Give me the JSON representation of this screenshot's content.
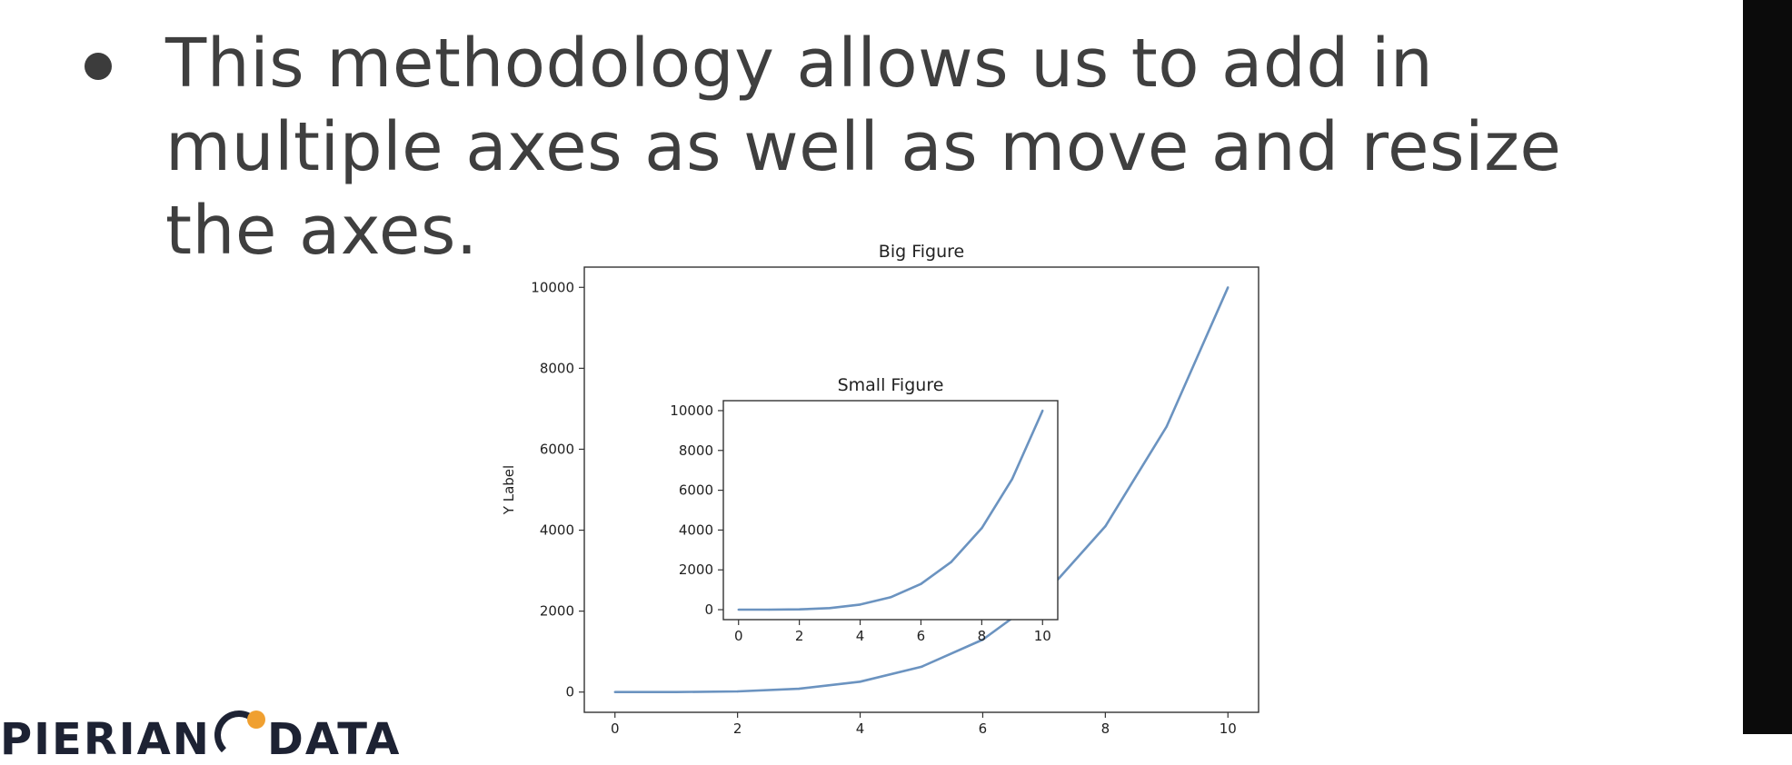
{
  "slide": {
    "bullet_lines": [
      "This methodology allows us to add in",
      "multiple axes as well as move and resize",
      "the axes."
    ],
    "logo": {
      "left_text": "PIERIAN",
      "right_text": "DATA"
    }
  },
  "colors": {
    "line": "#6b93c0",
    "axis": "#333333",
    "text": "#3f3f3f",
    "accent": "#f0a030"
  },
  "chart_data": [
    {
      "type": "line",
      "title": "Big Figure",
      "xlabel": "",
      "ylabel": "Y Label",
      "xlim": [
        -0.5,
        10.5
      ],
      "ylim": [
        -500,
        10500
      ],
      "xticks": [
        0,
        2,
        4,
        6,
        8,
        10
      ],
      "yticks": [
        0,
        2000,
        4000,
        6000,
        8000,
        10000
      ],
      "grid": false,
      "x": [
        0,
        1,
        2,
        3,
        4,
        5,
        6,
        7,
        8,
        9,
        10
      ],
      "y": [
        0,
        1,
        16,
        81,
        256,
        625,
        1296,
        2401,
        4096,
        6561,
        10000
      ]
    },
    {
      "type": "line",
      "title": "Small Figure",
      "xlabel": "",
      "ylabel": "",
      "xlim": [
        -0.5,
        10.5
      ],
      "ylim": [
        -500,
        10500
      ],
      "xticks": [
        0,
        2,
        4,
        6,
        8,
        10
      ],
      "yticks": [
        0,
        2000,
        4000,
        6000,
        8000,
        10000
      ],
      "grid": false,
      "x": [
        0,
        1,
        2,
        3,
        4,
        5,
        6,
        7,
        8,
        9,
        10
      ],
      "y": [
        0,
        1,
        16,
        81,
        256,
        625,
        1296,
        2401,
        4096,
        6561,
        10000
      ]
    }
  ]
}
